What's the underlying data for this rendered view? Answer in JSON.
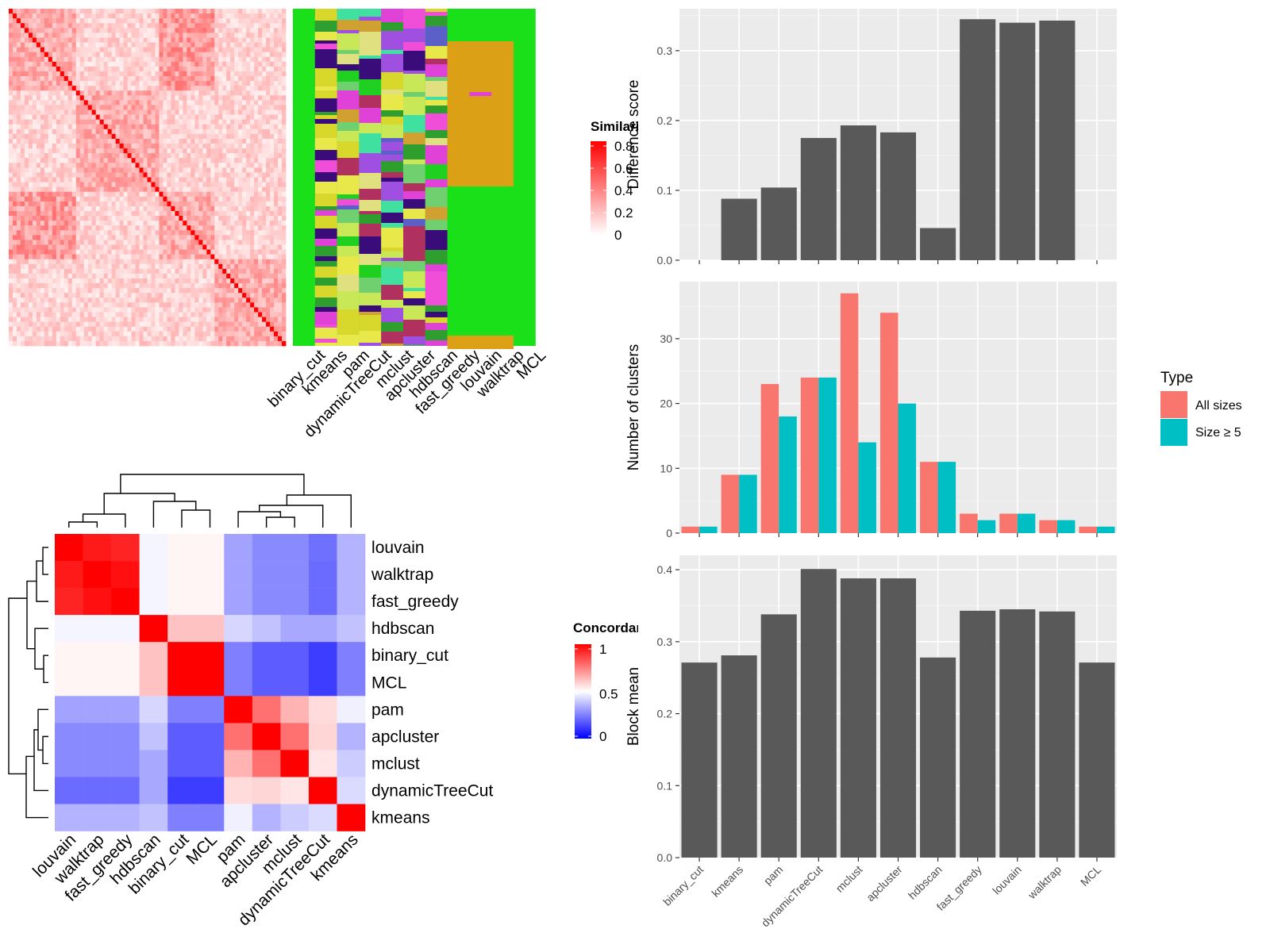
{
  "chart_data": [
    {
      "type": "heatmap",
      "title": "",
      "legend": {
        "title": "Similarity",
        "ticks": [
          "0.8",
          "0.6",
          "0.4",
          "0.2",
          "0"
        ],
        "range": [
          0,
          0.8
        ]
      },
      "colors": {
        "low": "#ffffff",
        "high": "#ff0000"
      },
      "methods": [
        "binary_cut",
        "kmeans",
        "pam",
        "dynamicTreeCut",
        "mclust",
        "apcluster",
        "hdbscan",
        "fast_greedy",
        "louvain",
        "walktrap",
        "MCL"
      ],
      "legend_placement": "right"
    },
    {
      "type": "heatmap",
      "title": "",
      "legend": {
        "title": "Concordance",
        "ticks": [
          "1",
          "0.5",
          "0"
        ],
        "range": [
          0,
          1
        ]
      },
      "colors": {
        "low": "#0000ff",
        "mid": "#ffffff",
        "high": "#ff0000"
      },
      "rows": [
        "louvain",
        "walktrap",
        "fast_greedy",
        "hdbscan",
        "binary_cut",
        "MCL",
        "pam",
        "apcluster",
        "mclust",
        "dynamicTreeCut",
        "kmeans"
      ],
      "columns": [
        "louvain",
        "walktrap",
        "fast_greedy",
        "hdbscan",
        "binary_cut",
        "MCL",
        "pam",
        "apcluster",
        "mclust",
        "dynamicTreeCut",
        "kmeans"
      ],
      "values": [
        [
          1.0,
          0.95,
          0.93,
          0.48,
          0.52,
          0.52,
          0.32,
          0.27,
          0.27,
          0.22,
          0.35
        ],
        [
          0.95,
          1.0,
          0.97,
          0.48,
          0.52,
          0.52,
          0.32,
          0.27,
          0.27,
          0.21,
          0.35
        ],
        [
          0.93,
          0.97,
          1.0,
          0.48,
          0.52,
          0.52,
          0.32,
          0.27,
          0.27,
          0.21,
          0.35
        ],
        [
          0.48,
          0.48,
          0.48,
          1.0,
          0.62,
          0.62,
          0.42,
          0.38,
          0.33,
          0.33,
          0.38
        ],
        [
          0.52,
          0.52,
          0.52,
          0.62,
          1.0,
          1.0,
          0.25,
          0.18,
          0.18,
          0.12,
          0.25
        ],
        [
          0.52,
          0.52,
          0.52,
          0.62,
          1.0,
          1.0,
          0.25,
          0.18,
          0.18,
          0.12,
          0.25
        ],
        [
          0.32,
          0.32,
          0.32,
          0.42,
          0.25,
          0.25,
          1.0,
          0.78,
          0.65,
          0.57,
          0.47
        ],
        [
          0.27,
          0.27,
          0.27,
          0.38,
          0.18,
          0.18,
          0.78,
          1.0,
          0.78,
          0.58,
          0.35
        ],
        [
          0.27,
          0.27,
          0.27,
          0.33,
          0.18,
          0.18,
          0.65,
          0.78,
          1.0,
          0.55,
          0.4
        ],
        [
          0.21,
          0.21,
          0.21,
          0.33,
          0.12,
          0.12,
          0.57,
          0.58,
          0.55,
          1.0,
          0.43
        ],
        [
          0.35,
          0.35,
          0.35,
          0.38,
          0.25,
          0.25,
          0.47,
          0.35,
          0.4,
          0.43,
          1.0
        ]
      ]
    },
    {
      "type": "bar",
      "categories": [
        "binary_cut",
        "kmeans",
        "pam",
        "dynamicTreeCut",
        "mclust",
        "apcluster",
        "hdbscan",
        "fast_greedy",
        "louvain",
        "walktrap",
        "MCL"
      ],
      "values": [
        0,
        0.088,
        0.104,
        0.175,
        0.193,
        0.183,
        0.046,
        0.345,
        0.34,
        0.343,
        0
      ],
      "ylabel": "Difference score",
      "xlabel": "",
      "ylim": [
        0,
        0.36
      ],
      "yticks": [
        "0.0",
        "0.1",
        "0.2",
        "0.3"
      ],
      "grid": true,
      "bar_color": "#595959"
    },
    {
      "type": "bar",
      "categories": [
        "binary_cut",
        "kmeans",
        "pam",
        "dynamicTreeCut",
        "mclust",
        "apcluster",
        "hdbscan",
        "fast_greedy",
        "louvain",
        "walktrap",
        "MCL"
      ],
      "series": [
        {
          "name": "All sizes",
          "values": [
            1,
            9,
            23,
            24,
            37,
            34,
            11,
            3,
            3,
            2,
            1
          ],
          "color": "#f8766d"
        },
        {
          "name": "Size ≥ 5",
          "values": [
            1,
            9,
            18,
            24,
            14,
            20,
            11,
            2,
            3,
            2,
            1
          ],
          "color": "#00bfc4"
        }
      ],
      "ylabel": "Number of clusters",
      "xlabel": "",
      "ylim": [
        0,
        38.8
      ],
      "yticks": [
        "0",
        "10",
        "20",
        "30"
      ],
      "legend": {
        "title": "Type",
        "placement": "right"
      },
      "grid": true
    },
    {
      "type": "bar",
      "categories": [
        "binary_cut",
        "kmeans",
        "pam",
        "dynamicTreeCut",
        "mclust",
        "apcluster",
        "hdbscan",
        "fast_greedy",
        "louvain",
        "walktrap",
        "MCL"
      ],
      "values": [
        0.271,
        0.281,
        0.338,
        0.401,
        0.388,
        0.388,
        0.278,
        0.343,
        0.345,
        0.342,
        0.271
      ],
      "ylabel": "Block mean",
      "xlabel": "",
      "ylim": [
        0,
        0.42
      ],
      "yticks": [
        "0.0",
        "0.1",
        "0.2",
        "0.3",
        "0.4"
      ],
      "grid": true,
      "bar_color": "#595959"
    }
  ]
}
